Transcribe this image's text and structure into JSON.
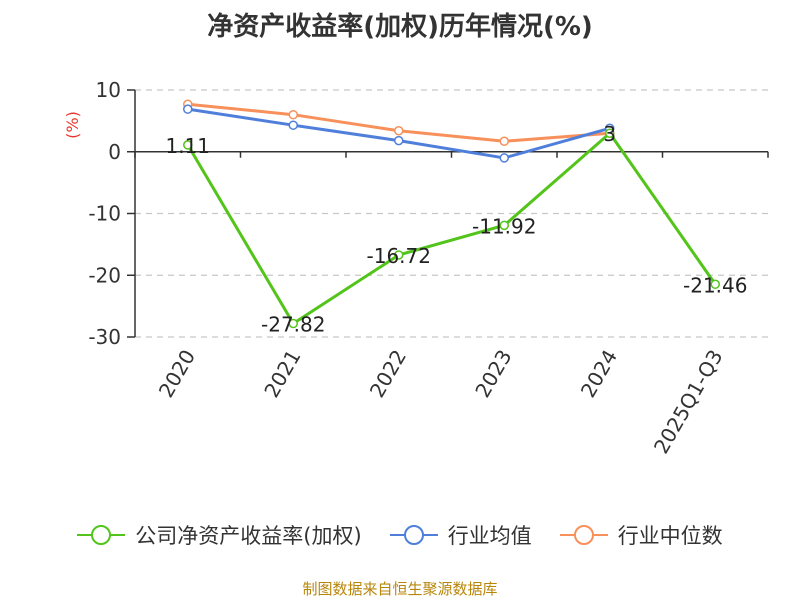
{
  "title": "净资产收益率(加权)历年情况(%)",
  "source": "制图数据来自恒生聚源数据库",
  "colors": {
    "company": "#52c41a",
    "avg": "#4f7fdb",
    "median": "#f7905a",
    "unit": "#e8382e"
  },
  "chart_data": {
    "type": "line",
    "title": "净资产收益率(加权)历年情况(%)",
    "ylabel": "(%)",
    "ylim": [
      -30,
      10
    ],
    "yticks": [
      10,
      0,
      -10,
      -20,
      -30
    ],
    "grid": true,
    "legend_position": "bottom",
    "categories": [
      "2020",
      "2021",
      "2022",
      "2023",
      "2024",
      "2025Q1-Q3"
    ],
    "series": [
      {
        "name": "公司净资产收益率(加权)",
        "values": [
          1.11,
          -27.82,
          -16.72,
          -11.92,
          3,
          -21.46
        ],
        "labels": [
          "1.11",
          "-27.82",
          "-16.72",
          "-11.92",
          "3",
          "-21.46"
        ]
      },
      {
        "name": "行业均值",
        "values": [
          6.9,
          4.3,
          1.8,
          -1.0,
          3.8,
          null
        ]
      },
      {
        "name": "行业中位数",
        "values": [
          7.7,
          6.0,
          3.4,
          1.7,
          3.0,
          null
        ]
      }
    ]
  }
}
